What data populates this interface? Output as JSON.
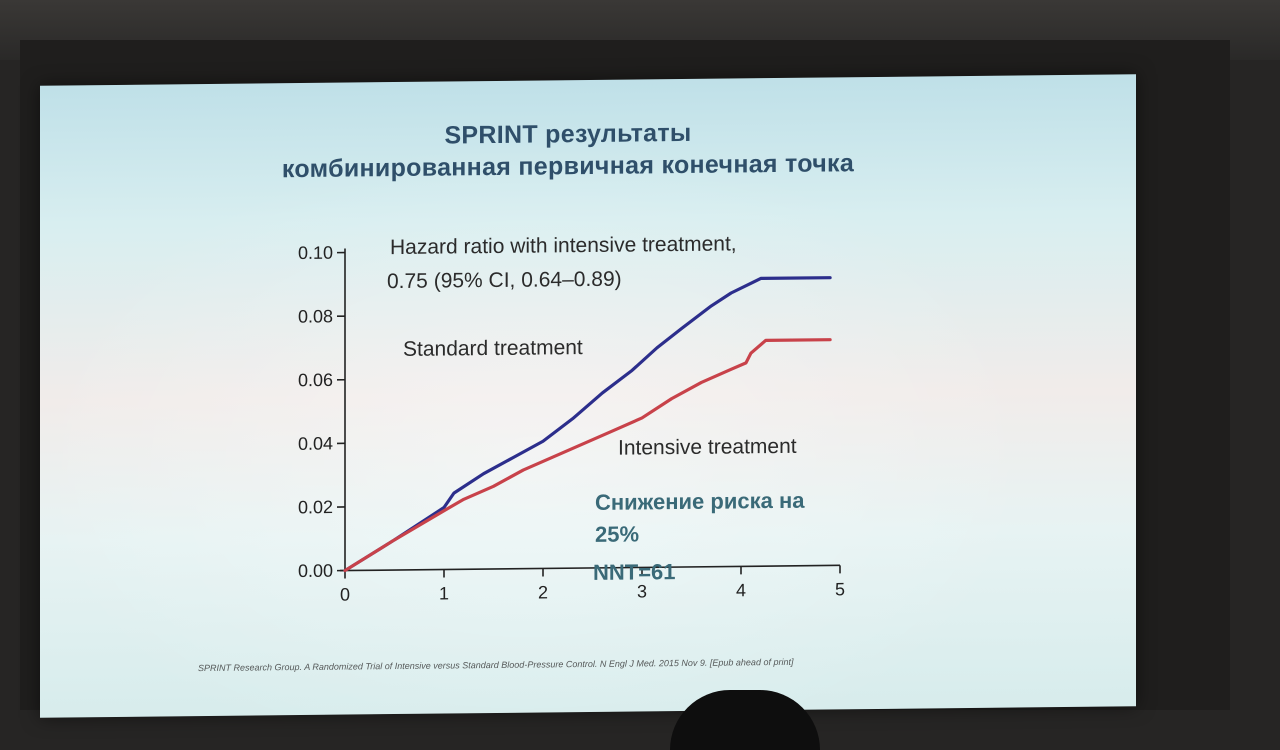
{
  "slide": {
    "title_line1": "SPRINT результаты",
    "title_line2": "комбинированная первичная конечная точка",
    "citation": "SPRINT Research Group. A Randomized Trial of Intensive versus Standard Blood-Pressure Control. N Engl J Med. 2015 Nov 9. [Epub ahead of print]"
  },
  "chart_data": {
    "type": "line",
    "title": "",
    "xlabel": "",
    "ylabel": "",
    "xlim": [
      0,
      5
    ],
    "ylim": [
      0,
      0.1
    ],
    "x_ticks": [
      "0",
      "1",
      "2",
      "3",
      "4",
      "5"
    ],
    "y_ticks": [
      "0.00",
      "0.02",
      "0.04",
      "0.06",
      "0.08",
      "0.10"
    ],
    "grid": false,
    "series": [
      {
        "name": "Standard treatment",
        "color": "#2c2e8c",
        "x": [
          0,
          0.5,
          1.0,
          1.1,
          1.4,
          1.7,
          2.0,
          2.3,
          2.6,
          2.9,
          3.15,
          3.4,
          3.7,
          3.9,
          4.1,
          4.2,
          4.9
        ],
        "y": [
          0,
          0.0095,
          0.0195,
          0.024,
          0.03,
          0.035,
          0.04,
          0.047,
          0.055,
          0.062,
          0.069,
          0.075,
          0.082,
          0.086,
          0.089,
          0.0905,
          0.0905
        ]
      },
      {
        "name": "Intensive treatment",
        "color": "#c8424a",
        "x": [
          0,
          0.5,
          1.0,
          1.2,
          1.5,
          1.8,
          2.1,
          2.4,
          2.7,
          3.0,
          3.3,
          3.6,
          3.9,
          4.05,
          4.1,
          4.25,
          4.9
        ],
        "y": [
          0,
          0.0095,
          0.0185,
          0.022,
          0.026,
          0.031,
          0.035,
          0.039,
          0.043,
          0.047,
          0.053,
          0.058,
          0.062,
          0.064,
          0.067,
          0.071,
          0.071
        ]
      }
    ],
    "annotations": {
      "hazard_line1": "Hazard ratio with intensive treatment,",
      "hazard_line2": "0.75 (95% CI, 0.64–0.89)",
      "risk_line1": "Снижение   риска   на",
      "risk_line2": "25%",
      "nnt": "NNT=61"
    }
  }
}
